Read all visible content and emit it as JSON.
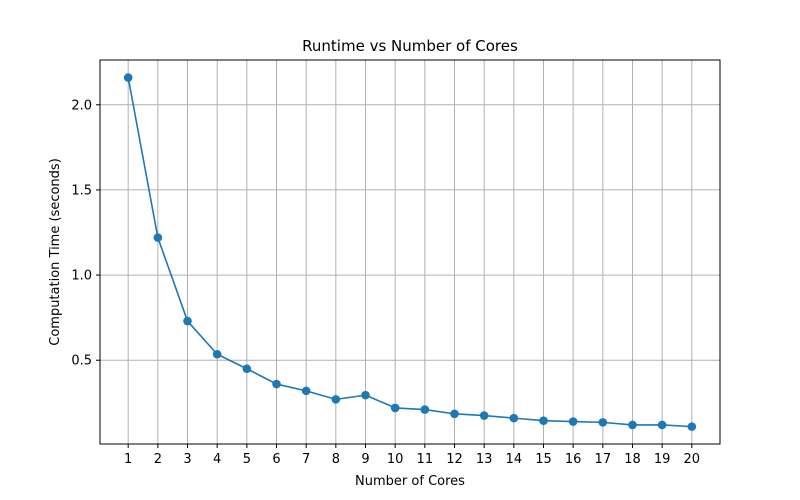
{
  "chart_data": {
    "type": "line",
    "title": "Runtime vs Number of Cores",
    "xlabel": "Number of Cores",
    "ylabel": "Computation Time (seconds)",
    "x": [
      1,
      2,
      3,
      4,
      5,
      6,
      7,
      8,
      9,
      10,
      11,
      12,
      13,
      14,
      15,
      16,
      17,
      18,
      19,
      20
    ],
    "series": [
      {
        "values": [
          2.16,
          1.22,
          0.73,
          0.535,
          0.45,
          0.36,
          0.32,
          0.27,
          0.295,
          0.22,
          0.21,
          0.185,
          0.175,
          0.16,
          0.145,
          0.14,
          0.135,
          0.12,
          0.12,
          0.11
        ],
        "color": "#1f77b4"
      }
    ],
    "xticks": [
      "1",
      "2",
      "3",
      "4",
      "5",
      "6",
      "7",
      "8",
      "9",
      "10",
      "11",
      "12",
      "13",
      "14",
      "15",
      "16",
      "17",
      "18",
      "19",
      "20"
    ],
    "yticks": [
      0.5,
      1.0,
      1.5,
      2.0
    ],
    "ytick_labels": [
      "0.5",
      "1.0",
      "1.5",
      "2.0"
    ],
    "xlim": [
      0.05,
      20.95
    ],
    "ylim": [
      0.008,
      2.263
    ],
    "grid": true,
    "marker": "circle"
  }
}
